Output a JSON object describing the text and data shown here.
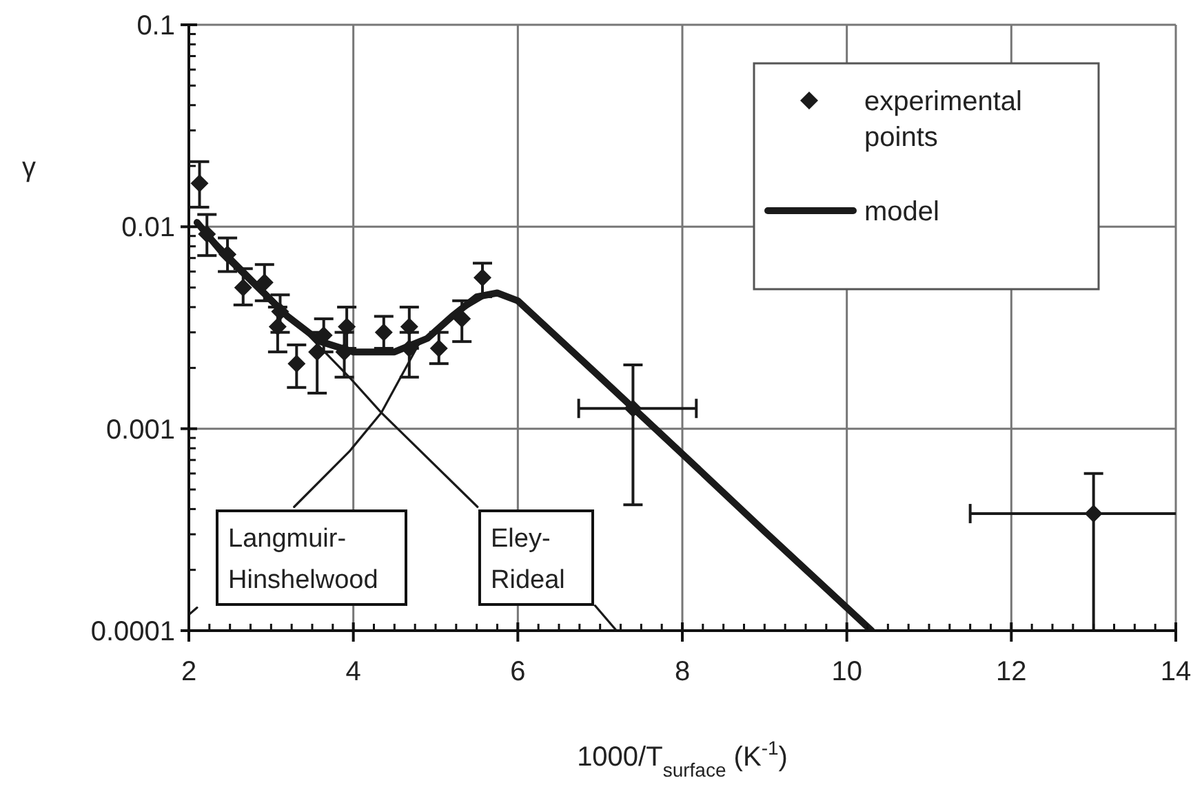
{
  "chart_data": {
    "type": "scatter",
    "xlabel": "1000/T$_{surface}$  (K$^{-1}$)",
    "ylabel": "γ",
    "log": "y",
    "grid": true,
    "legend": "top right",
    "xlim": [
      2,
      14
    ],
    "xticks": [
      2,
      4,
      6,
      8,
      10,
      12,
      14
    ],
    "ylim": [
      0.0001,
      0.1
    ],
    "yticks": [
      0.0001,
      0.001,
      0.01,
      0.1
    ],
    "series": [
      {
        "name": "experimental points",
        "color": "#1a1a1a",
        "marker": "diamond",
        "x": [
          2.13,
          2.22,
          2.47,
          2.66,
          2.92,
          3.11,
          3.08,
          3.31,
          3.56,
          3.64,
          3.92,
          3.89,
          4.37,
          4.68,
          4.68,
          5.04,
          5.32,
          5.57,
          7.4,
          13.0
        ],
        "values": [
          0.0164,
          0.0092,
          0.0073,
          0.005,
          0.0053,
          0.0038,
          0.0032,
          0.0021,
          0.0024,
          0.0029,
          0.0032,
          0.0024,
          0.003,
          0.0032,
          0.0025,
          0.0025,
          0.0035,
          0.0056,
          0.00126,
          0.00038
        ],
        "errors": [
          [
            0.0125,
            0.021
          ],
          [
            0.0072,
            0.0115
          ],
          [
            0.006,
            0.0088
          ],
          [
            0.0041,
            0.0062
          ],
          [
            0.0043,
            0.0065
          ],
          [
            0.003,
            0.0046
          ],
          [
            0.0024,
            0.004
          ],
          [
            0.0016,
            0.0026
          ],
          [
            0.0015,
            0.003
          ],
          [
            0.0024,
            0.0035
          ],
          [
            0.0025,
            0.004
          ],
          [
            0.0018,
            0.003
          ],
          [
            0.0025,
            0.0036
          ],
          [
            0.0025,
            0.004
          ],
          [
            0.0018,
            0.003
          ],
          [
            0.0021,
            0.003
          ],
          [
            0.0027,
            0.0043
          ],
          [
            0.0045,
            0.0066
          ],
          [
            0.00042,
            0.00207
          ],
          [
            0.0001,
            0.0006
          ]
        ],
        "xerrors": [
          null,
          null,
          null,
          null,
          null,
          null,
          null,
          null,
          null,
          null,
          null,
          null,
          null,
          null,
          null,
          null,
          null,
          null,
          [
            6.74,
            8.17
          ],
          [
            11.5,
            14
          ]
        ]
      },
      {
        "name": "model",
        "type": "line",
        "color": "#1a1a1a",
        "marker": "none",
        "x": [
          2.1,
          2.4,
          2.8,
          3.2,
          3.6,
          4.0,
          4.5,
          4.9,
          5.2,
          5.5,
          5.75,
          6.0,
          7.0,
          8.0,
          9.0,
          10.0,
          10.3
        ],
        "values": [
          0.0105,
          0.0075,
          0.0052,
          0.0036,
          0.0027,
          0.0024,
          0.0024,
          0.0028,
          0.0036,
          0.0045,
          0.0047,
          0.0043,
          0.0018,
          0.00075,
          0.00031,
          0.00013,
          0.0001
        ]
      },
      {
        "type": "line",
        "color": "#1a1a1a",
        "marker": "none",
        "x": [
          2.0,
          2.1,
          2.2,
          3.28,
          3.95,
          4.34,
          4.79,
          5.2,
          5.6
        ],
        "values": [
          0.00012,
          0.00013,
          null,
          0.00041,
          0.00077,
          0.0012,
          0.0026,
          0.0036,
          0.0045
        ]
      },
      {
        "type": "line",
        "color": "#1a1a1a",
        "marker": "none",
        "x": [
          2.1,
          3.0,
          3.95,
          4.34,
          5.51,
          6.2,
          6.94,
          7.2
        ],
        "values": [
          0.0105,
          0.0045,
          0.0018,
          0.0012,
          0.00041,
          null,
          0.000133,
          0.0001
        ]
      }
    ],
    "annotations": [
      "Langmuir-Hinshelwood",
      "Eley-Rideal"
    ]
  }
}
